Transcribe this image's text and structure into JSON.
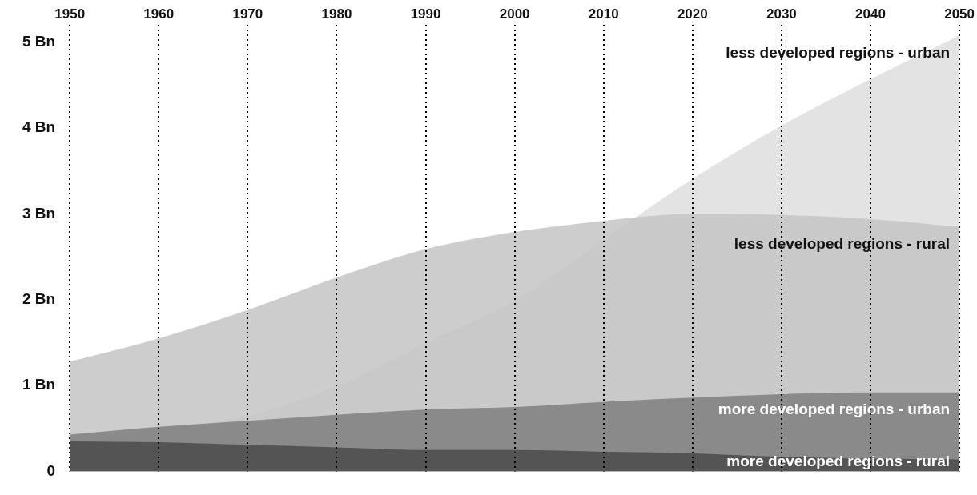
{
  "chart_data": {
    "type": "area",
    "x": [
      1950,
      1960,
      1970,
      1980,
      1990,
      2000,
      2010,
      2020,
      2030,
      2040,
      2050
    ],
    "series": [
      {
        "name": "less developed regions - urban",
        "color": "#dedede",
        "values": [
          0.3,
          0.48,
          0.65,
          0.99,
          1.5,
          1.99,
          2.7,
          3.41,
          4.03,
          4.57,
          5.08
        ]
      },
      {
        "name": "less developed regions - rural",
        "color": "#c4c4c4",
        "values": [
          1.28,
          1.55,
          1.88,
          2.26,
          2.59,
          2.79,
          2.92,
          3.0,
          2.99,
          2.94,
          2.85
        ]
      },
      {
        "name": "more developed regions - urban",
        "color": "#7f7f7f",
        "values": [
          0.43,
          0.52,
          0.59,
          0.66,
          0.72,
          0.75,
          0.81,
          0.86,
          0.9,
          0.92,
          0.92
        ]
      },
      {
        "name": "more developed regions - rural",
        "color": "#4a4a4a",
        "values": [
          0.35,
          0.34,
          0.31,
          0.28,
          0.25,
          0.25,
          0.23,
          0.21,
          0.17,
          0.15,
          0.14
        ]
      }
    ],
    "xlim": [
      1950,
      2050
    ],
    "xticks": [
      1950,
      1960,
      1970,
      1980,
      1990,
      2000,
      2010,
      2020,
      2030,
      2040,
      2050
    ],
    "ylim": [
      0,
      5.2
    ],
    "yticks": [
      0,
      {
        "value": 1,
        "label": "1 Bn"
      },
      {
        "value": 2,
        "label": "2 Bn"
      },
      {
        "value": 3,
        "label": "3 Bn"
      },
      {
        "value": 4,
        "label": "4 Bn"
      },
      {
        "value": 5,
        "label": "5 Bn"
      }
    ],
    "grid": "x",
    "legend": false
  }
}
